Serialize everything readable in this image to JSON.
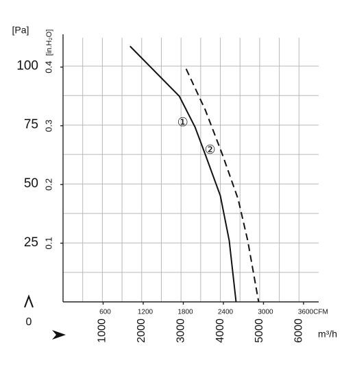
{
  "chart_data": {
    "type": "line",
    "y_unit_label": "[Pa]",
    "y2_unit_label": "[in.H₂O]",
    "x_unit_label": "m³/h",
    "x2_unit_label": "CFM",
    "origin_label": "0",
    "xlim": [
      0,
      6500
    ],
    "xticks": [
      1000,
      2000,
      3000,
      4000,
      5000,
      6000
    ],
    "x_minor_grid": [
      500,
      1500,
      2500,
      3500,
      4500,
      5500
    ],
    "x2lim": [
      0,
      3826
    ],
    "x2ticks": [
      600,
      1200,
      1800,
      2400,
      3000,
      3600
    ],
    "ylim": [
      0,
      112
    ],
    "yticks": [
      25,
      50,
      75,
      100
    ],
    "y_minor_grid": [
      12.5,
      37.5,
      62.5,
      87.5
    ],
    "y2lim": [
      0,
      0.45
    ],
    "y2ticks": [
      0.1,
      0.2,
      0.3,
      0.4
    ],
    "grid": true,
    "series": [
      {
        "name": "①",
        "color": "#111111",
        "style": "solid",
        "x": [
          1704,
          2957,
          3357,
          3617,
          4000,
          4226,
          4400
        ],
        "values": [
          108.4,
          87.2,
          74.1,
          62.5,
          45,
          26,
          0
        ]
      },
      {
        "name": "②",
        "color": "#111111",
        "style": "dashed",
        "x": [
          3130,
          3617,
          4052,
          4452,
          4696,
          4974
        ],
        "values": [
          98.8,
          81.4,
          62.5,
          43.6,
          26,
          0
        ]
      }
    ]
  }
}
